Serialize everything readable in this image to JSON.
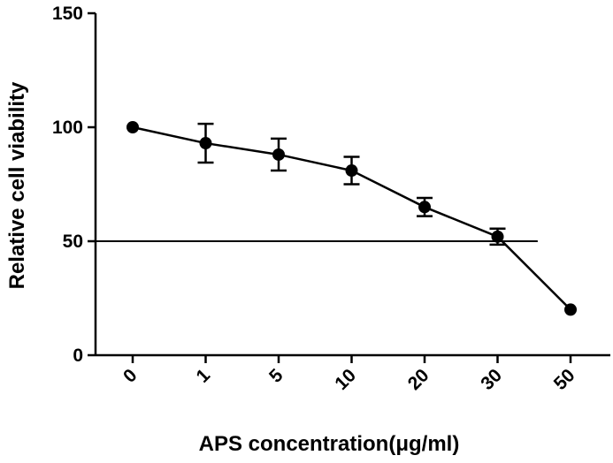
{
  "chart_data": {
    "type": "line",
    "title": "",
    "xlabel": "APS concentration(μg/ml)",
    "ylabel": "Relative cell viability",
    "categories": [
      "0",
      "1",
      "5",
      "10",
      "20",
      "30",
      "50"
    ],
    "y_ticks": [
      "0",
      "50",
      "100",
      "150"
    ],
    "ylim": [
      0,
      150
    ],
    "grid": false,
    "legend": "none",
    "series": [
      {
        "values": [
          100,
          93,
          88,
          81,
          65,
          52,
          20
        ],
        "error": [
          0,
          8.5,
          7,
          6,
          4,
          3.5,
          0
        ],
        "color": "#000000",
        "marker": "circle"
      }
    ],
    "reference_lines": [
      {
        "y": 50,
        "from_category": "0",
        "to_category": "30",
        "extends_past_last_by": 0.55
      }
    ]
  }
}
